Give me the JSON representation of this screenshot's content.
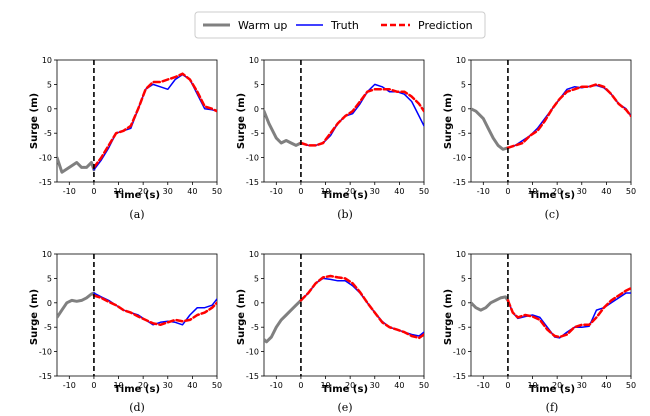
{
  "legend": {
    "items": [
      {
        "label": "Warm up",
        "color": "#808080",
        "dash": "",
        "width": 3
      },
      {
        "label": "Truth",
        "color": "#0000ff",
        "dash": "",
        "width": 1.5
      },
      {
        "label": "Prediction",
        "color": "#ff0000",
        "dash": "6,3",
        "width": 2.5
      }
    ]
  },
  "chart_data": [
    {
      "type": "line",
      "caption": "(a)",
      "xlabel": "Time (s)",
      "ylabel": "Surge (m)",
      "xlim": [
        -15,
        50
      ],
      "ylim": [
        -15,
        10
      ],
      "xticks": [
        -10,
        0,
        10,
        20,
        30,
        40,
        50
      ],
      "yticks": [
        -15,
        -10,
        -5,
        0,
        5,
        10
      ],
      "vline_x": 0,
      "series": [
        {
          "name": "Warm up",
          "x": [
            -15,
            -13,
            -10,
            -7,
            -5,
            -3,
            -1,
            0
          ],
          "y": [
            -10,
            -13,
            -12,
            -11,
            -12,
            -12,
            -11,
            -12.5
          ]
        },
        {
          "name": "Truth",
          "x": [
            0,
            3,
            6,
            9,
            12,
            15,
            18,
            21,
            24,
            27,
            30,
            33,
            36,
            39,
            42,
            45,
            48,
            50
          ],
          "y": [
            -12.5,
            -10.5,
            -8,
            -5,
            -4.5,
            -4,
            0,
            4,
            5,
            4.5,
            4,
            6,
            7,
            6,
            3,
            0,
            -0.2,
            -0.5
          ]
        },
        {
          "name": "Prediction",
          "x": [
            0,
            3,
            6,
            9,
            12,
            15,
            18,
            21,
            24,
            27,
            30,
            33,
            36,
            39,
            42,
            45,
            48,
            50
          ],
          "y": [
            -12,
            -10,
            -7.5,
            -5,
            -4.5,
            -3.5,
            0,
            4,
            5.5,
            5.5,
            6,
            6.5,
            7.2,
            6,
            3.5,
            0.5,
            0,
            -0.5
          ]
        }
      ]
    },
    {
      "type": "line",
      "caption": "(b)",
      "xlabel": "Time (s)",
      "ylabel": "Surge (m)",
      "xlim": [
        -15,
        50
      ],
      "ylim": [
        -15,
        10
      ],
      "xticks": [
        -10,
        0,
        10,
        20,
        30,
        40,
        50
      ],
      "yticks": [
        -15,
        -10,
        -5,
        0,
        5,
        10
      ],
      "vline_x": 0,
      "series": [
        {
          "name": "Warm up",
          "x": [
            -15,
            -13,
            -10,
            -8,
            -6,
            -4,
            -2,
            0
          ],
          "y": [
            -0.5,
            -3,
            -6,
            -7,
            -6.5,
            -7,
            -7.5,
            -7
          ]
        },
        {
          "name": "Truth",
          "x": [
            0,
            3,
            6,
            9,
            12,
            15,
            18,
            21,
            24,
            27,
            30,
            33,
            36,
            39,
            42,
            45,
            48,
            50
          ],
          "y": [
            -7,
            -7.5,
            -7.5,
            -7,
            -5.5,
            -3,
            -1.5,
            -1,
            1,
            3.5,
            5,
            4.5,
            3.5,
            3.5,
            3,
            1.5,
            -1.5,
            -3.5
          ]
        },
        {
          "name": "Prediction",
          "x": [
            0,
            3,
            6,
            9,
            12,
            15,
            18,
            21,
            24,
            27,
            30,
            33,
            36,
            39,
            42,
            45,
            48,
            50
          ],
          "y": [
            -7,
            -7.5,
            -7.5,
            -7,
            -5,
            -3,
            -1.5,
            -0.5,
            1.5,
            3.5,
            4,
            4,
            4,
            3.5,
            3.5,
            2.5,
            1,
            -0.5
          ]
        }
      ]
    },
    {
      "type": "line",
      "caption": "(c)",
      "xlabel": "Time (s)",
      "ylabel": "Surge (m)",
      "xlim": [
        -15,
        50
      ],
      "ylim": [
        -15,
        10
      ],
      "xticks": [
        -10,
        0,
        10,
        20,
        30,
        40,
        50
      ],
      "yticks": [
        -15,
        -10,
        -5,
        0,
        5,
        10
      ],
      "vline_x": 0,
      "series": [
        {
          "name": "Warm up",
          "x": [
            -15,
            -13,
            -10,
            -8,
            -6,
            -4,
            -2,
            0
          ],
          "y": [
            0,
            -0.5,
            -2,
            -4,
            -6,
            -7.5,
            -8.3,
            -8
          ]
        },
        {
          "name": "Truth",
          "x": [
            0,
            3,
            6,
            9,
            12,
            15,
            18,
            21,
            24,
            27,
            30,
            33,
            36,
            39,
            42,
            45,
            48,
            50
          ],
          "y": [
            -8,
            -7.5,
            -6.5,
            -5.5,
            -4,
            -2,
            0,
            2,
            4,
            4.5,
            4.3,
            4.6,
            4.8,
            4.3,
            3,
            1,
            0,
            -1.5
          ]
        },
        {
          "name": "Prediction",
          "x": [
            0,
            3,
            6,
            9,
            12,
            15,
            18,
            21,
            24,
            27,
            30,
            33,
            36,
            39,
            42,
            45,
            48,
            50
          ],
          "y": [
            -8,
            -7.5,
            -7,
            -5.5,
            -4.5,
            -2.5,
            0,
            2,
            3.5,
            4,
            4.5,
            4.5,
            5,
            4.5,
            3,
            1,
            -0.2,
            -1.5
          ]
        }
      ]
    },
    {
      "type": "line",
      "caption": "(d)",
      "xlabel": "Time (s)",
      "ylabel": "Surge (m)",
      "xlim": [
        -15,
        50
      ],
      "ylim": [
        -15,
        10
      ],
      "xticks": [
        -10,
        0,
        10,
        20,
        30,
        40,
        50
      ],
      "yticks": [
        -15,
        -10,
        -5,
        0,
        5,
        10
      ],
      "vline_x": 0,
      "series": [
        {
          "name": "Warm up",
          "x": [
            -15,
            -13,
            -11,
            -9,
            -7,
            -5,
            -3,
            -1,
            0
          ],
          "y": [
            -3,
            -1.5,
            0,
            0.5,
            0.3,
            0.5,
            1,
            1.8,
            2
          ]
        },
        {
          "name": "Truth",
          "x": [
            0,
            3,
            6,
            9,
            12,
            15,
            18,
            21,
            24,
            27,
            30,
            33,
            36,
            39,
            42,
            45,
            48,
            50
          ],
          "y": [
            2,
            1.2,
            0.5,
            -0.5,
            -1.5,
            -2,
            -2.5,
            -3.5,
            -4.5,
            -4,
            -3.8,
            -4,
            -4.5,
            -2.5,
            -1,
            -1,
            -0.5,
            0.8
          ]
        },
        {
          "name": "Prediction",
          "x": [
            0,
            3,
            6,
            9,
            12,
            15,
            18,
            21,
            24,
            27,
            30,
            33,
            36,
            39,
            42,
            45,
            48,
            50
          ],
          "y": [
            1.5,
            1,
            0.2,
            -0.5,
            -1.5,
            -2,
            -2.8,
            -3.5,
            -4.2,
            -4.5,
            -4,
            -3.5,
            -3.8,
            -3.5,
            -2.5,
            -2,
            -1,
            0
          ]
        }
      ]
    },
    {
      "type": "line",
      "caption": "(e)",
      "xlabel": "Time (s)",
      "ylabel": "Surge (m)",
      "xlim": [
        -15,
        50
      ],
      "ylim": [
        -15,
        10
      ],
      "xticks": [
        -10,
        0,
        10,
        20,
        30,
        40,
        50
      ],
      "yticks": [
        -15,
        -10,
        -5,
        0,
        5,
        10
      ],
      "vline_x": 0,
      "series": [
        {
          "name": "Warm up",
          "x": [
            -15,
            -14,
            -12,
            -10,
            -8,
            -6,
            -4,
            -2,
            0
          ],
          "y": [
            -7.5,
            -8,
            -7,
            -5,
            -3.5,
            -2.5,
            -1.5,
            -0.5,
            0.5
          ]
        },
        {
          "name": "Truth",
          "x": [
            0,
            3,
            6,
            9,
            12,
            15,
            18,
            21,
            24,
            27,
            30,
            33,
            36,
            39,
            42,
            45,
            48,
            50
          ],
          "y": [
            0.5,
            2,
            4,
            5,
            4.8,
            4.5,
            4.5,
            3.5,
            2,
            0,
            -2,
            -3.8,
            -5,
            -5.5,
            -6,
            -6.5,
            -6.8,
            -6
          ]
        },
        {
          "name": "Prediction",
          "x": [
            0,
            3,
            6,
            9,
            12,
            15,
            18,
            21,
            24,
            27,
            30,
            33,
            36,
            39,
            42,
            45,
            48,
            50
          ],
          "y": [
            0.5,
            2,
            4,
            5.2,
            5.5,
            5.2,
            5,
            4,
            2.2,
            0,
            -2,
            -4,
            -5,
            -5.5,
            -6,
            -6.8,
            -7.2,
            -6.5
          ]
        }
      ]
    },
    {
      "type": "line",
      "caption": "(f)",
      "xlabel": "Time (s)",
      "ylabel": "Surge (m)",
      "xlim": [
        -15,
        50
      ],
      "ylim": [
        -15,
        10
      ],
      "xticks": [
        -10,
        0,
        10,
        20,
        30,
        40,
        50
      ],
      "yticks": [
        -15,
        -10,
        -5,
        0,
        5,
        10
      ],
      "vline_x": 0,
      "series": [
        {
          "name": "Warm up",
          "x": [
            -15,
            -13,
            -11,
            -9,
            -7,
            -5,
            -3,
            -1,
            0
          ],
          "y": [
            0,
            -1,
            -1.5,
            -1,
            0,
            0.5,
            1,
            1.2,
            0.5
          ]
        },
        {
          "name": "Truth",
          "x": [
            0,
            2,
            4,
            7,
            10,
            13,
            16,
            19,
            21,
            24,
            27,
            30,
            33,
            36,
            39,
            42,
            45,
            48,
            50
          ],
          "y": [
            0.5,
            -2,
            -3.2,
            -2.8,
            -2.5,
            -3,
            -5,
            -7,
            -7.2,
            -6,
            -5,
            -5,
            -4.8,
            -1.5,
            -1,
            0,
            1,
            2,
            2
          ]
        },
        {
          "name": "Prediction",
          "x": [
            0,
            2,
            4,
            7,
            10,
            13,
            16,
            19,
            21,
            24,
            27,
            30,
            33,
            36,
            39,
            42,
            45,
            48,
            50
          ],
          "y": [
            0.5,
            -2,
            -3,
            -2.5,
            -2.8,
            -3.5,
            -5.5,
            -6.8,
            -7,
            -6.5,
            -5,
            -4.5,
            -4.5,
            -3,
            -1,
            0.5,
            1.5,
            2.5,
            3
          ]
        }
      ]
    }
  ]
}
